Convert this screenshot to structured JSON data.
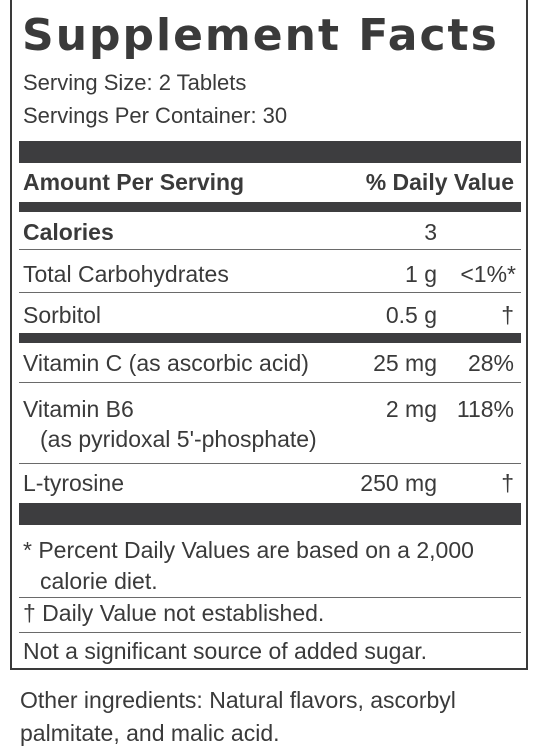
{
  "title": "Supplement Facts",
  "serving_size": "Serving Size: 2 Tablets",
  "servings_per_container": "Servings Per Container: 30",
  "header": {
    "amount": "Amount Per Serving",
    "dv": "% Daily Value"
  },
  "rows": [
    {
      "name": "Calories",
      "amount": "3",
      "dv": ""
    },
    {
      "name": "Total Carbohydrates",
      "amount": "1 g",
      "dv": "<1%*"
    },
    {
      "name": "Sorbitol",
      "amount": "0.5 g",
      "dv": "†"
    },
    {
      "name": "Vitamin C (as ascorbic acid)",
      "amount": "25 mg",
      "dv": "28%"
    },
    {
      "name": "Vitamin B6",
      "sub": "(as pyridoxal 5'-phosphate)",
      "amount": "2 mg",
      "dv": "118%"
    },
    {
      "name": "L-tyrosine",
      "amount": "250 mg",
      "dv": "†"
    }
  ],
  "footnotes": {
    "percent_line1": "* Percent Daily Values are based on a 2,000",
    "percent_line2": "calorie diet.",
    "dagger": "† Daily Value not established.",
    "sugar": "Not a significant source of added sugar."
  },
  "other_ingredients": "Other ingredients: Natural flavors, ascorbyl palmitate, and malic acid."
}
